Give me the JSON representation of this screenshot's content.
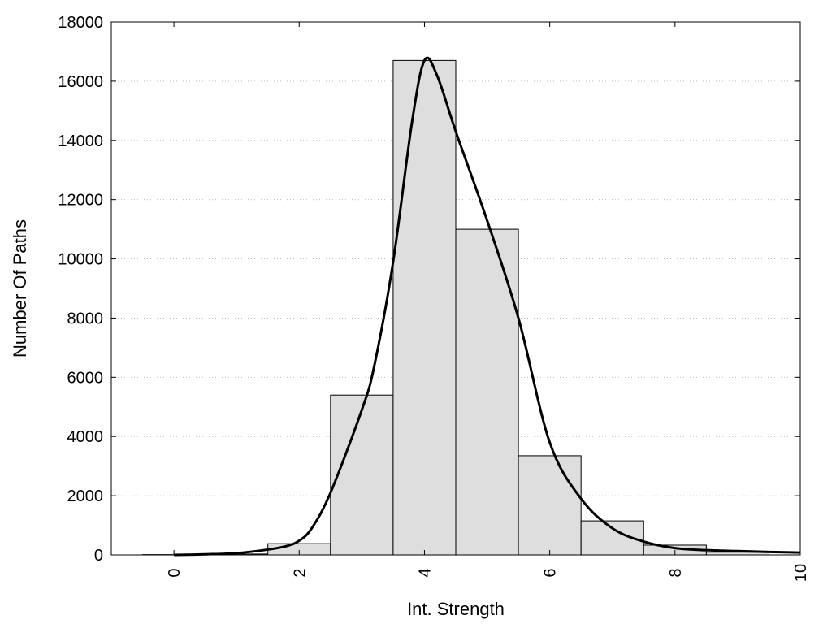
{
  "chart_data": {
    "type": "bar",
    "xlabel": "Int. Strength",
    "ylabel": "Number Of Paths",
    "xlim": [
      -1,
      10
    ],
    "ylim": [
      0,
      18000
    ],
    "x_ticks": [
      0,
      2,
      4,
      6,
      8,
      10
    ],
    "y_ticks": [
      0,
      2000,
      4000,
      6000,
      8000,
      10000,
      12000,
      14000,
      16000,
      18000
    ],
    "grid": "horizontal-dotted",
    "bar_width": 1,
    "bars": [
      {
        "x": 0,
        "value": 10
      },
      {
        "x": 1,
        "value": 30
      },
      {
        "x": 2,
        "value": 380
      },
      {
        "x": 3,
        "value": 5400
      },
      {
        "x": 4,
        "value": 16700
      },
      {
        "x": 5,
        "value": 11000
      },
      {
        "x": 6,
        "value": 3350
      },
      {
        "x": 7,
        "value": 1150
      },
      {
        "x": 8,
        "value": 330
      },
      {
        "x": 9,
        "value": 90
      }
    ],
    "curve": {
      "x": [
        0,
        0.5,
        1,
        1.5,
        1.8,
        2,
        2.2,
        2.5,
        3,
        3.2,
        3.5,
        3.8,
        4,
        4.2,
        4.5,
        5,
        5.5,
        6,
        6.5,
        7,
        7.5,
        8,
        8.5,
        9,
        9.5,
        10
      ],
      "y": [
        0,
        20,
        60,
        180,
        300,
        480,
        900,
        2100,
        4900,
        6400,
        9900,
        14600,
        16700,
        16200,
        14300,
        11300,
        8000,
        3800,
        1900,
        900,
        450,
        230,
        160,
        130,
        100,
        80
      ]
    },
    "style": {
      "bar_fill": "#dedede",
      "bar_stroke": "#000000",
      "curve_color": "#000000",
      "grid_color": "#bbbbbb"
    }
  }
}
